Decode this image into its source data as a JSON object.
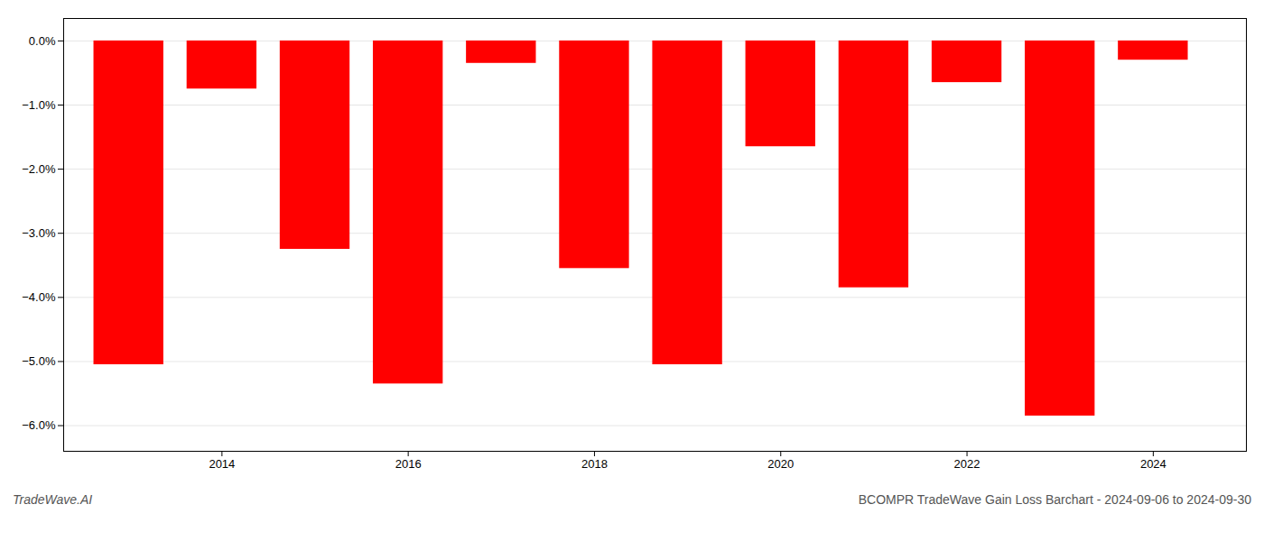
{
  "chart_data": {
    "type": "bar",
    "title": "BCOMPR TradeWave Gain Loss Barchart - 2024-09-06 to 2024-09-30",
    "annotations": [
      "TradeWave.AI"
    ],
    "x": [
      2013,
      2014,
      2015,
      2016,
      2017,
      2018,
      2019,
      2020,
      2021,
      2022,
      2023,
      2024
    ],
    "values": [
      -5.05,
      -0.75,
      -3.25,
      -5.35,
      -0.35,
      -3.55,
      -5.05,
      -1.65,
      -3.85,
      -0.65,
      -5.85,
      -0.3
    ],
    "color": "#ff0000",
    "xlim": [
      2012.3,
      2025.0
    ],
    "xticks": [
      2014,
      2016,
      2018,
      2020,
      2022,
      2024
    ],
    "ylim": [
      -6.4,
      0.35
    ],
    "yticks": [
      {
        "value": 0.0,
        "label": "0.0%"
      },
      {
        "value": -1.0,
        "label": "−1.0%"
      },
      {
        "value": -2.0,
        "label": "−2.0%"
      },
      {
        "value": -3.0,
        "label": "−3.0%"
      },
      {
        "value": -4.0,
        "label": "−4.0%"
      },
      {
        "value": -5.0,
        "label": "−5.0%"
      },
      {
        "value": -6.0,
        "label": "−6.0%"
      }
    ],
    "grid": true
  }
}
